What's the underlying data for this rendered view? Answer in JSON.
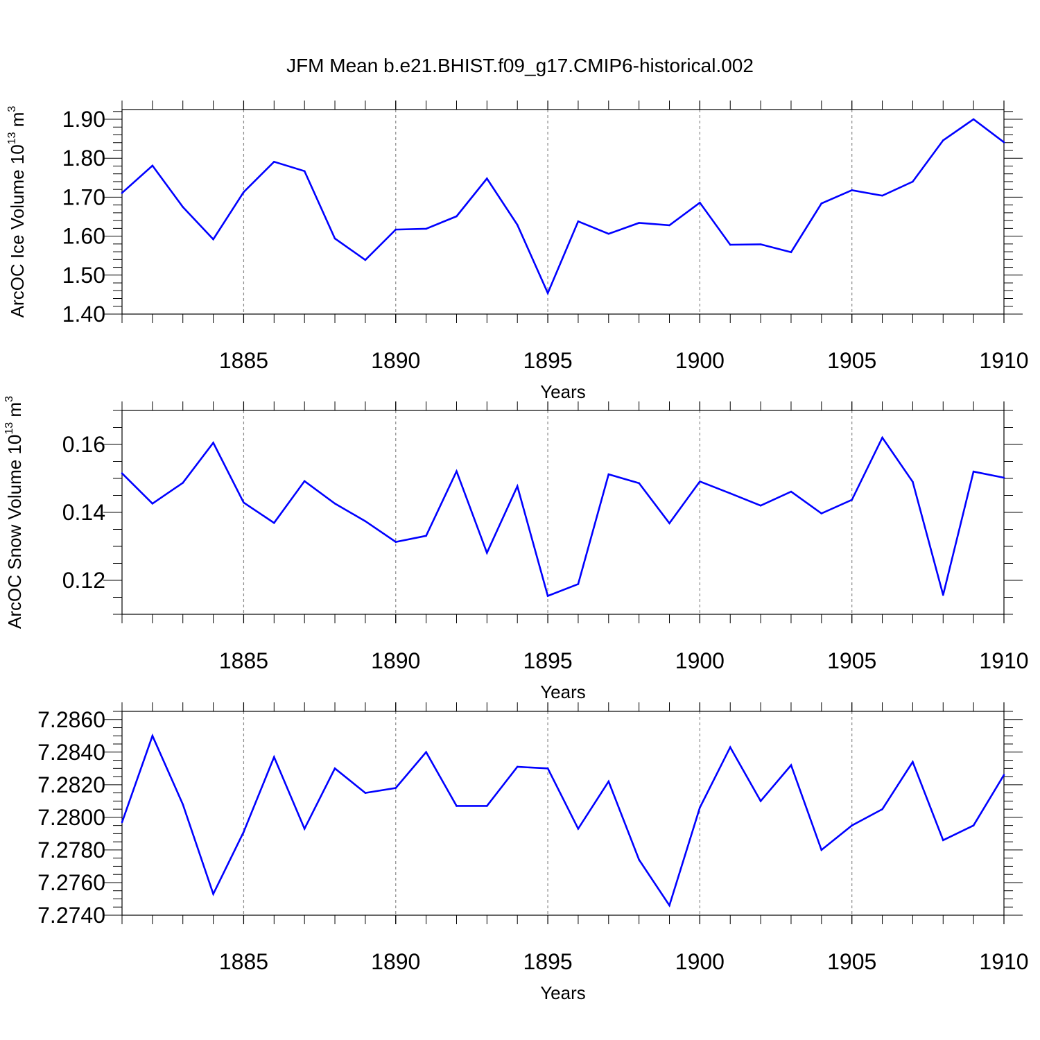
{
  "title": "JFM Mean b.e21.BHIST.f09_g17.CMIP6-historical.002",
  "line_color": "#0000ff",
  "chart_data": [
    {
      "type": "line",
      "series_name": "ArcOC Ice Volume",
      "ylabel": "ArcOC Ice Volume 10",
      "ylabel_exp": "13",
      "ylabel_unit": " m",
      "ylabel_unit_exp": "3",
      "xlabel": "Years",
      "xlim": [
        1881,
        1910
      ],
      "ylim": [
        1.4,
        1.925
      ],
      "xticks": [
        1885,
        1890,
        1895,
        1900,
        1905,
        1910
      ],
      "yticks": [
        1.4,
        1.5,
        1.6,
        1.7,
        1.8,
        1.9
      ],
      "ytick_labels": [
        "1.40",
        "1.50",
        "1.60",
        "1.70",
        "1.80",
        "1.90"
      ],
      "yminor": 0.02,
      "x": [
        1881,
        1882,
        1883,
        1884,
        1885,
        1886,
        1887,
        1888,
        1889,
        1890,
        1891,
        1892,
        1893,
        1894,
        1895,
        1896,
        1897,
        1898,
        1899,
        1900,
        1901,
        1902,
        1903,
        1904,
        1905,
        1906,
        1907,
        1908,
        1909,
        1910
      ],
      "values": [
        1.711,
        1.781,
        1.675,
        1.592,
        1.713,
        1.791,
        1.767,
        1.594,
        1.539,
        1.617,
        1.619,
        1.651,
        1.748,
        1.629,
        1.454,
        1.638,
        1.606,
        1.634,
        1.628,
        1.686,
        1.578,
        1.579,
        1.559,
        1.684,
        1.718,
        1.704,
        1.74,
        1.846,
        1.9,
        1.841
      ]
    },
    {
      "type": "line",
      "series_name": "ArcOC Snow Volume",
      "ylabel": "ArcOC Snow Volume 10",
      "ylabel_exp": "13",
      "ylabel_unit": " m",
      "ylabel_unit_exp": "3",
      "xlabel": "Years",
      "xlim": [
        1881,
        1910
      ],
      "ylim": [
        0.11,
        0.17
      ],
      "xticks": [
        1885,
        1890,
        1895,
        1900,
        1905,
        1910
      ],
      "yticks": [
        0.12,
        0.14,
        0.16
      ],
      "ytick_labels": [
        "0.12",
        "0.14",
        "0.16"
      ],
      "yminor": 0.005,
      "x": [
        1881,
        1882,
        1883,
        1884,
        1885,
        1886,
        1887,
        1888,
        1889,
        1890,
        1891,
        1892,
        1893,
        1894,
        1895,
        1896,
        1897,
        1898,
        1899,
        1900,
        1901,
        1902,
        1903,
        1904,
        1905,
        1906,
        1907,
        1908,
        1909,
        1910
      ],
      "values": [
        0.1515,
        0.1426,
        0.1487,
        0.1605,
        0.1429,
        0.1369,
        0.1492,
        0.1426,
        0.1374,
        0.1313,
        0.1331,
        0.1521,
        0.1281,
        0.1477,
        0.1154,
        0.1189,
        0.1512,
        0.1486,
        0.1368,
        0.1491,
        0.1456,
        0.142,
        0.1461,
        0.1397,
        0.1437,
        0.162,
        0.149,
        0.1157,
        0.152,
        0.1502
      ]
    },
    {
      "type": "line",
      "series_name": "",
      "ylabel": "",
      "xlabel": "Years",
      "xlim": [
        1881,
        1910
      ],
      "ylim": [
        7.274,
        7.2865
      ],
      "xticks": [
        1885,
        1890,
        1895,
        1900,
        1905,
        1910
      ],
      "yticks": [
        7.274,
        7.276,
        7.278,
        7.28,
        7.282,
        7.284,
        7.286
      ],
      "ytick_labels": [
        "7.2740",
        "7.2760",
        "7.2780",
        "7.2800",
        "7.2820",
        "7.2840",
        "7.2860"
      ],
      "yminor": 0.0005,
      "x": [
        1881,
        1882,
        1883,
        1884,
        1885,
        1886,
        1887,
        1888,
        1889,
        1890,
        1891,
        1892,
        1893,
        1894,
        1895,
        1896,
        1897,
        1898,
        1899,
        1900,
        1901,
        1902,
        1903,
        1904,
        1905,
        1906,
        1907,
        1908,
        1909,
        1910
      ],
      "values": [
        7.2797,
        7.285,
        7.2808,
        7.2753,
        7.2791,
        7.2837,
        7.2793,
        7.283,
        7.2815,
        7.2818,
        7.284,
        7.2807,
        7.2807,
        7.2831,
        7.283,
        7.2793,
        7.2822,
        7.2774,
        7.2746,
        7.2806,
        7.2843,
        7.281,
        7.2832,
        7.278,
        7.2795,
        7.2805,
        7.2834,
        7.2786,
        7.2795,
        7.2826
      ]
    }
  ]
}
